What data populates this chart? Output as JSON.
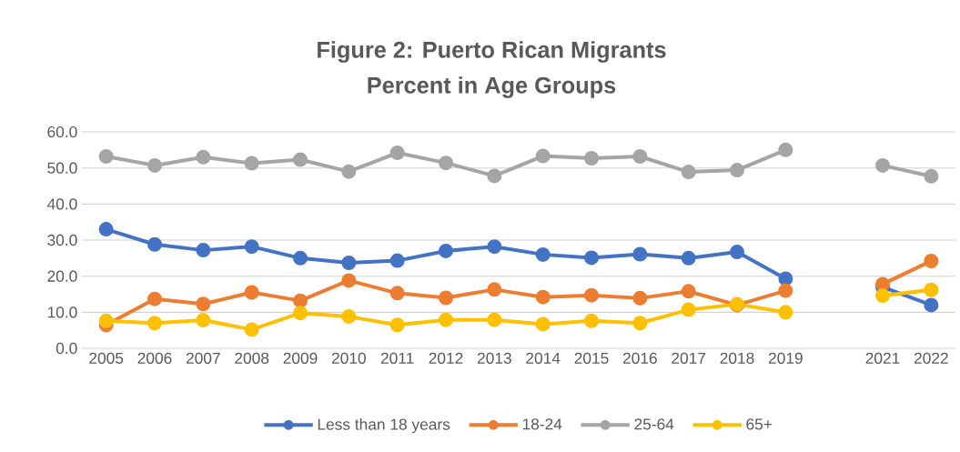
{
  "chart_data": {
    "type": "line",
    "title": "Figure 2: Puerto Rican Migrants",
    "subtitle": "Percent in Age Groups",
    "categories": [
      "2005",
      "2006",
      "2007",
      "2008",
      "2009",
      "2010",
      "2011",
      "2012",
      "2013",
      "2014",
      "2015",
      "2016",
      "2017",
      "2018",
      "2019",
      null,
      "2021",
      "2022"
    ],
    "series": [
      {
        "name": "Less than 18 years",
        "color": "#4472c4",
        "values": [
          33.0,
          28.8,
          27.2,
          28.2,
          25.0,
          23.7,
          24.3,
          27.0,
          28.2,
          26.0,
          25.1,
          26.1,
          25.0,
          26.7,
          19.3,
          null,
          17.0,
          12.0
        ]
      },
      {
        "name": "18-24",
        "color": "#ed7d31",
        "values": [
          6.5,
          13.7,
          12.3,
          15.5,
          13.2,
          18.8,
          15.3,
          14.0,
          16.3,
          14.2,
          14.7,
          13.9,
          15.8,
          12.0,
          16.0,
          null,
          17.8,
          24.2
        ]
      },
      {
        "name": "25-64",
        "color": "#a5a5a5",
        "values": [
          53.2,
          50.7,
          53.0,
          51.3,
          52.3,
          49.0,
          54.2,
          51.4,
          47.8,
          53.3,
          52.7,
          53.2,
          48.9,
          49.4,
          55.0,
          null,
          50.7,
          47.7
        ]
      },
      {
        "name": "65+",
        "color": "#ffc000",
        "values": [
          7.6,
          7.0,
          7.8,
          5.2,
          9.8,
          8.8,
          6.5,
          7.9,
          7.9,
          6.7,
          7.6,
          7.0,
          10.7,
          12.2,
          10.0,
          null,
          14.6,
          16.2
        ]
      }
    ],
    "ylim": [
      0,
      60
    ],
    "yticks": [
      {
        "value": 0,
        "label": "0.0"
      },
      {
        "value": 10,
        "label": "10.0"
      },
      {
        "value": 20,
        "label": "20.0"
      },
      {
        "value": 30,
        "label": "30.0"
      },
      {
        "value": 40,
        "label": "40.0"
      },
      {
        "value": 50,
        "label": "50.0"
      },
      {
        "value": 60,
        "label": "60.0"
      }
    ],
    "grid": "y",
    "legend": "bottom",
    "marker": "circle",
    "line_style": "solid"
  }
}
